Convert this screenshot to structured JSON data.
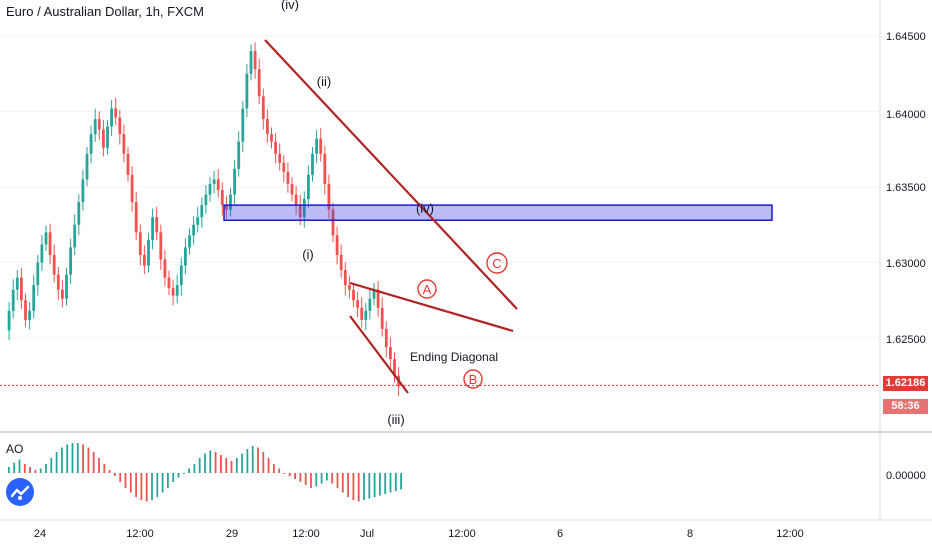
{
  "chart_data": {
    "type": "candlestick",
    "title": "Euro / Australian Dollar, 1h, FXCM",
    "y_ticks": [
      "1.64500",
      "1.64000",
      "1.63500",
      "1.63000",
      "1.62500"
    ],
    "ylim": [
      1.6195,
      1.648
    ],
    "x_ticks": [
      "24",
      "12:00",
      "29",
      "12:00",
      "Jul",
      "12:00",
      "6",
      "8",
      "12:00"
    ],
    "current_price": "1.62186",
    "countdown": "58:36",
    "indicator": {
      "name": "AO",
      "tick": "0.00000"
    },
    "wave_labels": [
      "(iv)",
      "(ii)",
      "(i)",
      "(iii)",
      "(iv)"
    ],
    "circled_labels": [
      "A",
      "B",
      "C"
    ],
    "annotation": "Ending Diagonal",
    "zone": {
      "low": 1.6328,
      "high": 1.6338
    },
    "candle_closes": [
      1.6255,
      1.6268,
      1.6282,
      1.629,
      1.6275,
      1.6262,
      1.6268,
      1.6285,
      1.63,
      1.6312,
      1.632,
      1.6305,
      1.6292,
      1.6282,
      1.6276,
      1.6292,
      1.631,
      1.6325,
      1.634,
      1.6355,
      1.6372,
      1.6385,
      1.6395,
      1.6388,
      1.6376,
      1.639,
      1.6402,
      1.6396,
      1.6385,
      1.6372,
      1.6358,
      1.634,
      1.632,
      1.6305,
      1.6298,
      1.6315,
      1.633,
      1.632,
      1.6302,
      1.629,
      1.6283,
      1.6278,
      1.6285,
      1.6298,
      1.631,
      1.6318,
      1.6325,
      1.633,
      1.6338,
      1.6345,
      1.6352,
      1.6355,
      1.6348,
      1.6338,
      1.6335,
      1.6345,
      1.6362,
      1.638,
      1.6402,
      1.6425,
      1.644,
      1.6428,
      1.641,
      1.6395,
      1.6385,
      1.638,
      1.6372,
      1.6366,
      1.636,
      1.6352,
      1.6345,
      1.6338,
      1.633,
      1.6342,
      1.6358,
      1.6372,
      1.6382,
      1.6372,
      1.6352,
      1.6335,
      1.6318,
      1.6305,
      1.6295,
      1.6285,
      1.6282,
      1.6275,
      1.627,
      1.6262,
      1.6268,
      1.6276,
      1.6282,
      1.627,
      1.6256,
      1.6244,
      1.6236,
      1.6225,
      1.6218
    ],
    "ao_values": [
      0.2,
      0.35,
      0.45,
      0.3,
      0.2,
      0.1,
      0.15,
      0.3,
      0.5,
      0.7,
      0.85,
      0.95,
      1.0,
      1.0,
      0.95,
      0.85,
      0.7,
      0.5,
      0.3,
      0.1,
      -0.1,
      -0.3,
      -0.5,
      -0.65,
      -0.8,
      -0.9,
      -0.95,
      -0.9,
      -0.8,
      -0.65,
      -0.5,
      -0.3,
      -0.15,
      0.0,
      0.15,
      0.3,
      0.5,
      0.65,
      0.75,
      0.7,
      0.6,
      0.5,
      0.4,
      0.5,
      0.65,
      0.8,
      0.9,
      0.85,
      0.7,
      0.5,
      0.3,
      0.15,
      0.0,
      -0.1,
      -0.2,
      -0.3,
      -0.4,
      -0.5,
      -0.45,
      -0.35,
      -0.25,
      -0.35,
      -0.5,
      -0.65,
      -0.8,
      -0.9,
      -0.95,
      -0.9,
      -0.85,
      -0.8,
      -0.75,
      -0.7,
      -0.65,
      -0.6,
      -0.55
    ]
  }
}
